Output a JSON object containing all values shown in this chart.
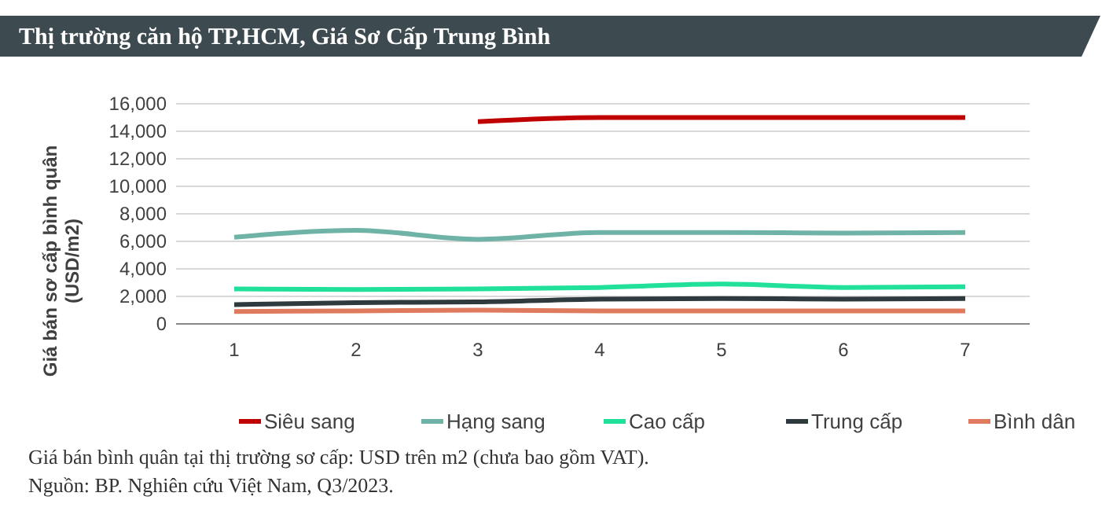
{
  "chart_data": {
    "type": "line",
    "title": "Thị trường căn hộ TP.HCM, Giá Sơ Cấp Trung Bình",
    "ylabel": "Giá bán sơ cấp bình quân\n(USD/m2)",
    "categories": [
      "1",
      "2",
      "3",
      "4",
      "5",
      "6",
      "7"
    ],
    "series": [
      {
        "name": "Siêu sang",
        "color": "#c00000",
        "values": [
          null,
          null,
          14700,
          15000,
          15000,
          15000,
          15000
        ]
      },
      {
        "name": "Hạng sang",
        "color": "#6fb3a6",
        "values": [
          6300,
          6800,
          6150,
          6650,
          6650,
          6600,
          6650
        ]
      },
      {
        "name": "Cao cấp",
        "color": "#21e09a",
        "values": [
          2550,
          2500,
          2550,
          2650,
          2900,
          2650,
          2700
        ]
      },
      {
        "name": "Trung cấp",
        "color": "#2f3a3f",
        "values": [
          1400,
          1550,
          1600,
          1800,
          1850,
          1800,
          1850
        ]
      },
      {
        "name": "Bình dân",
        "color": "#e07a5f",
        "values": [
          900,
          950,
          1000,
          950,
          950,
          950,
          950
        ]
      }
    ],
    "ylim": [
      0,
      16000
    ],
    "yticks": [
      {
        "value": 0,
        "label": "0"
      },
      {
        "value": 2000,
        "label": "2,000"
      },
      {
        "value": 4000,
        "label": "4,000"
      },
      {
        "value": 6000,
        "label": "6,000"
      },
      {
        "value": 8000,
        "label": "8,000"
      },
      {
        "value": 10000,
        "label": "10,000"
      },
      {
        "value": 12000,
        "label": "12,000"
      },
      {
        "value": 14000,
        "label": "14,000"
      },
      {
        "value": 16000,
        "label": "16,000"
      }
    ],
    "grid": "y",
    "legend": "bottom",
    "marker": "none",
    "line_style": "solid",
    "annotations": [
      "Giá bán bình quân tại thị trường sơ cấp: USD trên m2 (chưa bao gồm VAT).",
      "Nguồn: BP. Nghiên cứu Việt Nam, Q3/2023."
    ]
  }
}
